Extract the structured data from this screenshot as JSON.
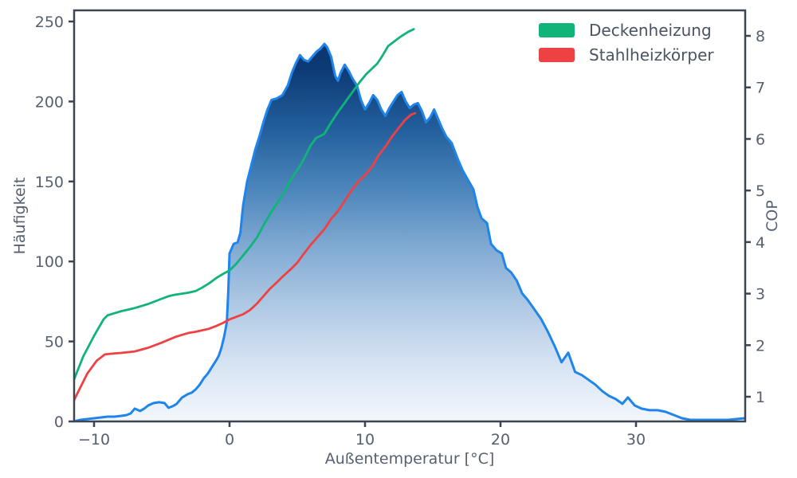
{
  "styles": {
    "background": "#ffffff",
    "spine_color": "#3d4452",
    "tick_label_color": "#566070",
    "spine_width": 2.5
  },
  "chart_data": {
    "type": "area",
    "title": "",
    "xlabel": "Außentemperatur [°C]",
    "ylabel_left": "Häufigkeit",
    "ylabel_right": "COP",
    "xlim": [
      -11.5,
      38.1
    ],
    "ylim_left": [
      0,
      257
    ],
    "ylim_right": [
      0.52,
      8.5
    ],
    "grid": false,
    "xticks": [
      -10,
      0,
      10,
      20,
      30
    ],
    "xtick_labels": [
      "−10",
      "0",
      "10",
      "20",
      "30"
    ],
    "yticks_left": [
      0,
      50,
      100,
      150,
      200,
      250
    ],
    "ytick_labels_left": [
      "0",
      "50",
      "100",
      "150",
      "200",
      "250"
    ],
    "yticks_right": [
      1,
      2,
      3,
      4,
      5,
      6,
      7,
      8
    ],
    "ytick_labels_right": [
      "1",
      "2",
      "3",
      "4",
      "5",
      "6",
      "7",
      "8"
    ],
    "legend": {
      "position": "upper right",
      "entries": [
        {
          "label": "Deckenheizung",
          "color": "#10b478"
        },
        {
          "label": "Stahlheizkörper",
          "color": "#ee4144"
        }
      ]
    },
    "series": [
      {
        "name": "Häufigkeit (Außentemperatur)",
        "type": "area",
        "axis": "left",
        "line_color": "#1f85eb",
        "line_width": 3,
        "fill_gradient_top_to_bottom": [
          "#08306b",
          "#0d3a74",
          "#225e9c",
          "#4a84ba",
          "#7fa9d2",
          "#aec8e4",
          "#d6e3f2",
          "#f3f7fc"
        ],
        "x": [
          -11.5,
          -11,
          -10.5,
          -10,
          -9.5,
          -9,
          -8.5,
          -8,
          -7.6,
          -7.3,
          -7,
          -6.6,
          -6.3,
          -6,
          -5.6,
          -5.2,
          -4.8,
          -4.5,
          -4.2,
          -3.9,
          -3.5,
          -3.1,
          -2.8,
          -2.5,
          -2.2,
          -1.9,
          -1.6,
          -1.3,
          -1,
          -0.8,
          -0.6,
          -0.4,
          -0.2,
          -0.1,
          0,
          0.3,
          0.6,
          0.8,
          1,
          1.3,
          1.6,
          1.9,
          2.2,
          2.5,
          2.8,
          3.1,
          3.5,
          3.9,
          4.3,
          4.6,
          4.9,
          5.2,
          5.5,
          5.8,
          6.1,
          6.4,
          6.7,
          7,
          7.2,
          7.5,
          7.8,
          8,
          8.2,
          8.5,
          8.8,
          9.1,
          9.4,
          9.7,
          10,
          10.3,
          10.6,
          10.9,
          11.2,
          11.5,
          11.8,
          12.1,
          12.4,
          12.7,
          13,
          13.3,
          13.6,
          13.9,
          14.2,
          14.5,
          14.8,
          15.1,
          15.4,
          15.7,
          16,
          16.4,
          16.8,
          17.2,
          17.6,
          18,
          18.3,
          18.6,
          19,
          19.3,
          19.7,
          20.1,
          20.4,
          20.8,
          21.2,
          21.6,
          22,
          22.5,
          23,
          23.5,
          24,
          24.5,
          25,
          25.5,
          26,
          26.5,
          27,
          27.5,
          28,
          28.5,
          29,
          29.4,
          29.9,
          30.4,
          31,
          31.6,
          32.2,
          32.8,
          33.4,
          34,
          34.6,
          35.2,
          36,
          36.8,
          37.4,
          38
        ],
        "y": [
          0,
          1,
          1.5,
          2,
          2.5,
          3,
          3,
          3.5,
          4,
          5,
          8,
          6.5,
          8,
          10,
          11.5,
          12,
          11.5,
          8.5,
          9.5,
          11,
          15,
          17,
          18,
          20,
          23,
          27,
          30,
          34,
          38,
          41,
          46,
          53,
          62,
          80,
          105,
          111,
          112,
          118,
          135,
          150,
          160,
          170,
          178,
          187,
          195,
          201,
          202,
          204,
          210,
          218,
          224,
          229,
          226,
          225,
          228,
          231,
          233,
          236,
          234,
          228,
          216,
          213,
          218,
          223,
          219,
          214,
          210,
          201,
          195,
          199,
          204,
          201,
          195,
          191,
          196,
          200,
          204,
          206,
          200,
          196,
          198,
          199,
          194,
          187,
          190,
          195,
          189,
          183,
          178,
          174,
          165,
          157,
          151,
          145,
          134,
          127,
          124,
          111,
          107,
          105,
          96,
          93,
          88,
          80,
          76,
          70,
          64,
          56,
          47,
          37,
          43,
          31,
          29,
          26,
          23,
          19,
          16,
          14,
          11,
          15,
          10,
          8,
          7,
          7,
          6,
          4,
          2,
          1,
          1,
          1,
          1,
          1,
          1.5,
          2
        ]
      },
      {
        "name": "Deckenheizung",
        "type": "line",
        "axis": "right",
        "line_color": "#10b478",
        "line_width": 2.8,
        "x": [
          -11.5,
          -10.8,
          -10,
          -9.3,
          -9,
          -8.5,
          -8,
          -7,
          -6,
          -5,
          -4.5,
          -4,
          -3.5,
          -3,
          -2.5,
          -2,
          -1.5,
          -1,
          -0.5,
          0,
          0.5,
          1,
          1.5,
          2,
          2.5,
          3,
          3.5,
          4,
          4.5,
          5,
          5.3,
          5.7,
          6,
          6.4,
          6.8,
          7,
          7.5,
          8,
          8.5,
          9.1,
          9.6,
          10.1,
          10.5,
          10.9,
          11.3,
          11.7,
          12.1,
          12.6,
          13.2,
          13.6
        ],
        "y": [
          1.32,
          1.78,
          2.18,
          2.5,
          2.58,
          2.62,
          2.66,
          2.72,
          2.8,
          2.9,
          2.95,
          2.98,
          3.0,
          3.02,
          3.05,
          3.12,
          3.2,
          3.3,
          3.38,
          3.45,
          3.58,
          3.74,
          3.9,
          4.08,
          4.32,
          4.55,
          4.75,
          4.95,
          5.2,
          5.4,
          5.52,
          5.72,
          5.88,
          6.02,
          6.07,
          6.1,
          6.32,
          6.52,
          6.7,
          6.92,
          7.1,
          7.26,
          7.36,
          7.46,
          7.62,
          7.8,
          7.88,
          7.98,
          8.08,
          8.13
        ]
      },
      {
        "name": "Stahlheizkörper",
        "type": "line",
        "axis": "right",
        "line_color": "#ee4144",
        "line_width": 2.8,
        "x": [
          -11.5,
          -11.2,
          -10.5,
          -9.8,
          -9.2,
          -8.5,
          -8,
          -7,
          -6,
          -5,
          -4,
          -3.5,
          -3,
          -2.5,
          -2,
          -1.5,
          -1,
          -0.5,
          0,
          0.5,
          1,
          1.5,
          2,
          2.5,
          3,
          3.5,
          4,
          4.5,
          5,
          5.5,
          6,
          6.5,
          7,
          7.5,
          8,
          8.5,
          9,
          9.5,
          10,
          10.5,
          11,
          11.5,
          12,
          12.5,
          13,
          13.4,
          13.7
        ],
        "y": [
          0.92,
          1.08,
          1.45,
          1.7,
          1.82,
          1.84,
          1.85,
          1.88,
          1.95,
          2.05,
          2.16,
          2.2,
          2.24,
          2.26,
          2.29,
          2.32,
          2.37,
          2.43,
          2.5,
          2.55,
          2.6,
          2.68,
          2.8,
          2.95,
          3.1,
          3.22,
          3.35,
          3.47,
          3.6,
          3.78,
          3.95,
          4.1,
          4.25,
          4.45,
          4.6,
          4.8,
          5.0,
          5.17,
          5.3,
          5.45,
          5.68,
          5.85,
          6.05,
          6.22,
          6.38,
          6.47,
          6.5
        ]
      }
    ]
  }
}
